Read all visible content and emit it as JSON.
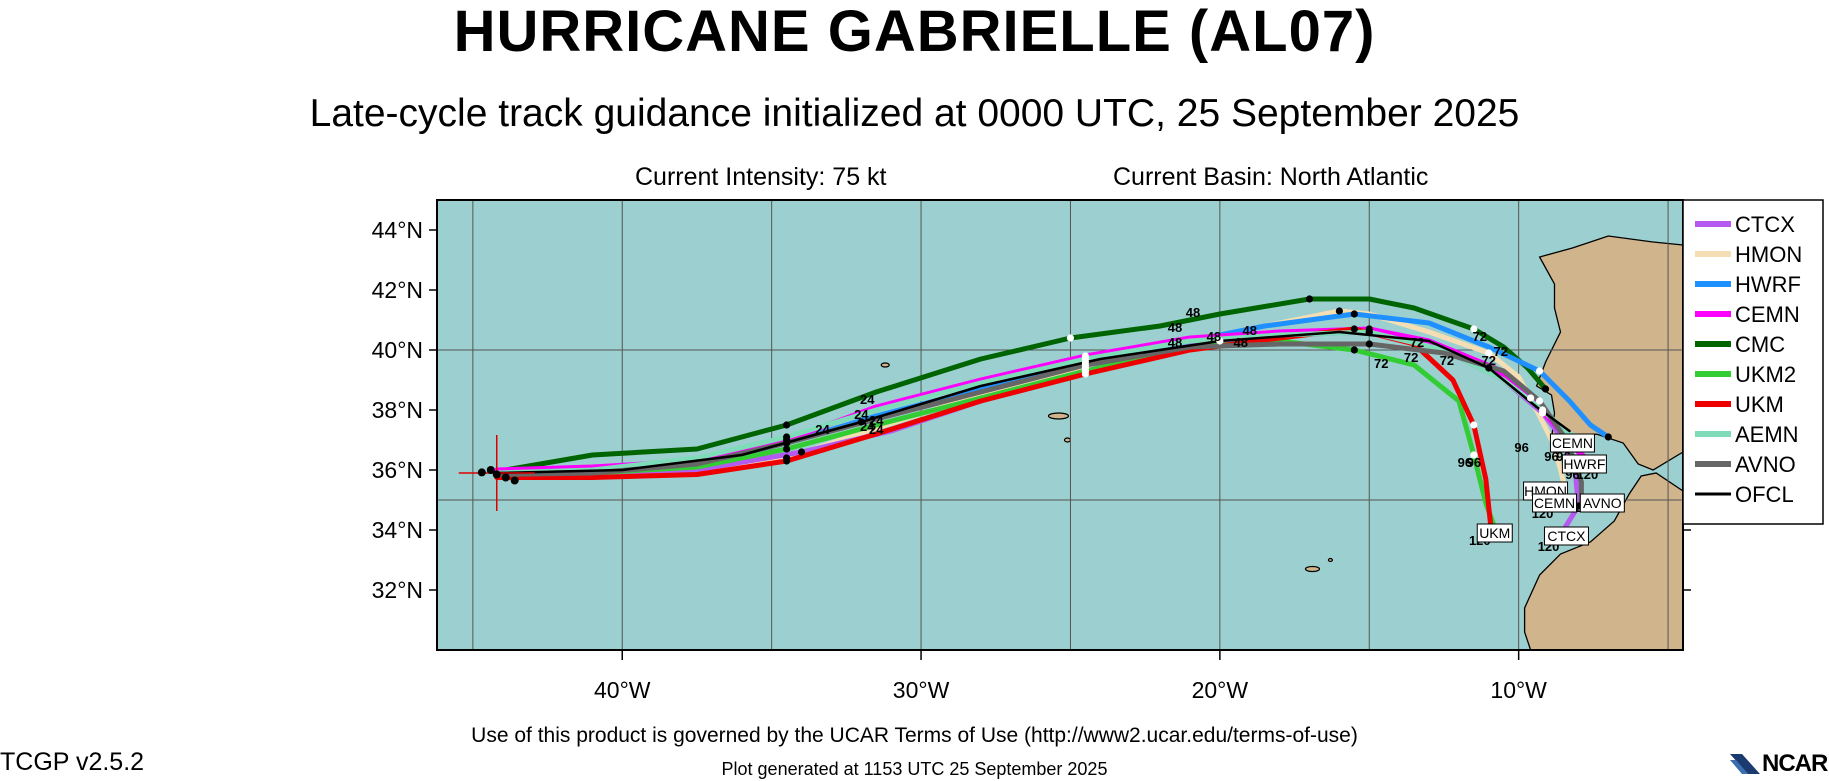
{
  "title": "HURRICANE GABRIELLE (AL07)",
  "subtitle": "Late-cycle track guidance initialized at 0000 UTC, 25 September 2025",
  "current_intensity": "Current Intensity: 75 kt",
  "current_basin": "Current Basin: North Atlantic",
  "terms": "Use of this product is governed by the UCAR Terms of Use (http://www2.ucar.edu/terms-of-use)",
  "version": "TCGP v2.5.2",
  "generated": "Plot generated at 1153 UTC   25 September 2025",
  "logo_text": "NCAR",
  "colors": {
    "ocean": "#9ccfcf",
    "land": "#d0b48c",
    "grid": "#555555"
  },
  "map": {
    "lon_range": [
      -46.2,
      -4.5
    ],
    "lat_range": [
      30.0,
      45.0
    ],
    "lat_ticks": [
      {
        "value": 44,
        "label": "44°N"
      },
      {
        "value": 42,
        "label": "42°N"
      },
      {
        "value": 40,
        "label": "40°N"
      },
      {
        "value": 38,
        "label": "38°N"
      },
      {
        "value": 36,
        "label": "36°N"
      },
      {
        "value": 34,
        "label": "34°N"
      },
      {
        "value": 32,
        "label": "32°N"
      }
    ],
    "lon_ticks": [
      {
        "value": -40,
        "label": "40°W"
      },
      {
        "value": -30,
        "label": "30°W"
      },
      {
        "value": -20,
        "label": "20°W"
      },
      {
        "value": -10,
        "label": "10°W"
      }
    ],
    "grid_lons": [
      -45,
      -40,
      -35,
      -30,
      -25,
      -20,
      -15,
      -10,
      -5
    ],
    "grid_lats": [
      35,
      40
    ],
    "current_position": {
      "lon": -44.2,
      "lat": 35.9
    }
  },
  "legend": [
    {
      "name": "CTCX",
      "color": "#b45af0"
    },
    {
      "name": "HMON",
      "color": "#f5deb3"
    },
    {
      "name": "HWRF",
      "color": "#1e90ff"
    },
    {
      "name": "CEMN",
      "color": "#ff00ff"
    },
    {
      "name": "CMC",
      "color": "#006400"
    },
    {
      "name": "UKM2",
      "color": "#32cd32"
    },
    {
      "name": "UKM",
      "color": "#ee0000"
    },
    {
      "name": "AEMN",
      "color": "#7fdcb8"
    },
    {
      "name": "AVNO",
      "color": "#666666"
    },
    {
      "name": "OFCL",
      "color": "#000000"
    }
  ],
  "tracks": [
    {
      "model": "CMC",
      "points": [
        [
          -44.2,
          35.95
        ],
        [
          -41,
          36.5
        ],
        [
          -37.5,
          36.7
        ],
        [
          -34.5,
          37.5
        ],
        [
          -31.5,
          38.6
        ],
        [
          -28,
          39.7
        ],
        [
          -25,
          40.4
        ],
        [
          -22,
          40.8
        ],
        [
          -20,
          41.2
        ],
        [
          -17,
          41.7
        ],
        [
          -15,
          41.7
        ],
        [
          -13.5,
          41.4
        ],
        [
          -11.5,
          40.7
        ],
        [
          -10.5,
          40.1
        ],
        [
          -9.7,
          39.4
        ],
        [
          -9.1,
          38.7
        ]
      ]
    },
    {
      "model": "HMON",
      "points": [
        [
          -44.2,
          35.85
        ],
        [
          -41,
          35.8
        ],
        [
          -37.5,
          35.9
        ],
        [
          -34.5,
          36.4
        ],
        [
          -31.5,
          37.4
        ],
        [
          -28,
          38.5
        ],
        [
          -24.5,
          39.4
        ],
        [
          -21,
          40.0
        ],
        [
          -19,
          40.7
        ],
        [
          -16,
          41.3
        ],
        [
          -15,
          41.2
        ],
        [
          -13,
          40.6
        ],
        [
          -11,
          39.9
        ],
        [
          -10,
          39.1
        ],
        [
          -9.4,
          38.0
        ],
        [
          -8.8,
          36.8
        ],
        [
          -8.5,
          35.6
        ],
        [
          -8.4,
          34.7
        ]
      ]
    },
    {
      "model": "CTCX",
      "points": [
        [
          -44.2,
          35.9
        ],
        [
          -41,
          35.9
        ],
        [
          -37.5,
          36.0
        ],
        [
          -34,
          36.6
        ],
        [
          -31,
          37.3
        ],
        [
          -28,
          38.3
        ],
        [
          -24.5,
          39.3
        ],
        [
          -21,
          40.2
        ],
        [
          -18,
          40.5
        ],
        [
          -15,
          40.6
        ],
        [
          -12.5,
          40.0
        ],
        [
          -10.5,
          39.0
        ],
        [
          -9.2,
          37.9
        ],
        [
          -8.5,
          37.0
        ],
        [
          -8.1,
          35.9
        ],
        [
          -8.0,
          34.8
        ],
        [
          -8.5,
          34.0
        ]
      ]
    },
    {
      "model": "HWRF",
      "points": [
        [
          -44.2,
          35.8
        ],
        [
          -41,
          35.9
        ],
        [
          -37.5,
          36.2
        ],
        [
          -34.5,
          36.9
        ],
        [
          -31.5,
          37.8
        ],
        [
          -28,
          38.7
        ],
        [
          -24.5,
          39.6
        ],
        [
          -21,
          40.3
        ],
        [
          -18.5,
          40.8
        ],
        [
          -15.5,
          41.2
        ],
        [
          -13,
          40.9
        ],
        [
          -11,
          40.1
        ],
        [
          -9.3,
          39.3
        ],
        [
          -8.3,
          38.3
        ],
        [
          -7.6,
          37.5
        ],
        [
          -7,
          37.1
        ]
      ]
    },
    {
      "model": "CEMN",
      "points": [
        [
          -44.2,
          36.0
        ],
        [
          -41,
          36.1
        ],
        [
          -37.5,
          36.3
        ],
        [
          -34.5,
          37.0
        ],
        [
          -31.5,
          38.1
        ],
        [
          -28,
          39.0
        ],
        [
          -24.5,
          39.8
        ],
        [
          -21,
          40.4
        ],
        [
          -18,
          40.6
        ],
        [
          -15,
          40.7
        ],
        [
          -13,
          40.3
        ],
        [
          -10.8,
          39.4
        ],
        [
          -9.6,
          38.4
        ],
        [
          -8.6,
          37.3
        ],
        [
          -8.0,
          36.6
        ],
        [
          -7.6,
          36.3
        ]
      ]
    },
    {
      "model": "UKM2",
      "points": [
        [
          -44.2,
          35.85
        ],
        [
          -41,
          35.9
        ],
        [
          -37.5,
          36.1
        ],
        [
          -34.5,
          36.7
        ],
        [
          -31.5,
          37.5
        ],
        [
          -28,
          38.4
        ],
        [
          -24.5,
          39.3
        ],
        [
          -21,
          40.1
        ],
        [
          -18,
          40.3
        ],
        [
          -15.5,
          40.0
        ],
        [
          -13.5,
          39.5
        ],
        [
          -12,
          38.3
        ],
        [
          -11.5,
          36.5
        ],
        [
          -11.1,
          34.9
        ],
        [
          -10.7,
          33.8
        ]
      ]
    },
    {
      "model": "UKM",
      "points": [
        [
          -44.2,
          35.75
        ],
        [
          -41,
          35.75
        ],
        [
          -37.5,
          35.85
        ],
        [
          -34.5,
          36.3
        ],
        [
          -31.5,
          37.2
        ],
        [
          -28,
          38.3
        ],
        [
          -24.5,
          39.2
        ],
        [
          -21,
          40.0
        ],
        [
          -18,
          40.4
        ],
        [
          -15.5,
          40.7
        ],
        [
          -13.5,
          40.2
        ],
        [
          -12.2,
          39.0
        ],
        [
          -11.5,
          37.5
        ],
        [
          -11.1,
          35.7
        ],
        [
          -10.9,
          33.8
        ]
      ]
    },
    {
      "model": "AEMN",
      "points": [
        [
          -44.2,
          35.9
        ],
        [
          -41,
          36.0
        ],
        [
          -37.5,
          36.4
        ],
        [
          -34.5,
          37.1
        ],
        [
          -31.5,
          38.0
        ],
        [
          -28,
          38.9
        ],
        [
          -24.5,
          39.7
        ],
        [
          -21,
          40.3
        ],
        [
          -18,
          40.5
        ],
        [
          -15,
          40.6
        ],
        [
          -12.5,
          40.0
        ],
        [
          -10.5,
          39.0
        ],
        [
          -9.2,
          38.0
        ],
        [
          -8.3,
          37.2
        ],
        [
          -7.6,
          37.0
        ]
      ]
    },
    {
      "model": "AVNO",
      "points": [
        [
          -44.2,
          35.85
        ],
        [
          -41,
          35.9
        ],
        [
          -37.5,
          36.2
        ],
        [
          -34.5,
          36.9
        ],
        [
          -31.5,
          37.7
        ],
        [
          -28,
          38.6
        ],
        [
          -24.5,
          39.5
        ],
        [
          -21,
          40.1
        ],
        [
          -18,
          40.2
        ],
        [
          -15,
          40.2
        ],
        [
          -12.5,
          39.9
        ],
        [
          -10.5,
          39.3
        ],
        [
          -9.3,
          38.3
        ],
        [
          -8.4,
          37.0
        ],
        [
          -7.9,
          35.6
        ],
        [
          -7.9,
          34.8
        ]
      ]
    },
    {
      "model": "OFCL",
      "points": [
        [
          -44.2,
          35.9
        ],
        [
          -40,
          36.0
        ],
        [
          -36,
          36.5
        ],
        [
          -32,
          37.6
        ],
        [
          -28,
          38.8
        ],
        [
          -24,
          39.7
        ],
        [
          -20,
          40.3
        ],
        [
          -16,
          40.6
        ],
        [
          -13,
          40.3
        ],
        [
          -11,
          39.4
        ],
        [
          -9.4,
          38.1
        ],
        [
          -8.3,
          37.3
        ]
      ]
    }
  ],
  "forecast_labels": [
    {
      "text": "24",
      "lon": -31.8,
      "lat": 38.2
    },
    {
      "text": "24",
      "lon": -32.0,
      "lat": 37.7
    },
    {
      "text": "24",
      "lon": -31.5,
      "lat": 37.5
    },
    {
      "text": "24",
      "lon": -33.3,
      "lat": 37.2
    },
    {
      "text": "24",
      "lon": -31.5,
      "lat": 37.2
    },
    {
      "text": "24",
      "lon": -31.8,
      "lat": 37.3
    },
    {
      "text": "48",
      "lon": -21.5,
      "lat": 40.6
    },
    {
      "text": "48",
      "lon": -20.2,
      "lat": 40.3
    },
    {
      "text": "48",
      "lon": -20.9,
      "lat": 41.1
    },
    {
      "text": "48",
      "lon": -21.5,
      "lat": 40.1
    },
    {
      "text": "48",
      "lon": -19.0,
      "lat": 40.5
    },
    {
      "text": "48",
      "lon": -19.3,
      "lat": 40.1
    },
    {
      "text": "72",
      "lon": -13.6,
      "lat": 39.6
    },
    {
      "text": "72",
      "lon": -13.4,
      "lat": 40.1
    },
    {
      "text": "72",
      "lon": -11.3,
      "lat": 40.3
    },
    {
      "text": "72",
      "lon": -14.6,
      "lat": 39.4
    },
    {
      "text": "72",
      "lon": -12.4,
      "lat": 39.5
    },
    {
      "text": "72",
      "lon": -10.6,
      "lat": 39.8
    },
    {
      "text": "72",
      "lon": -11.0,
      "lat": 39.5
    },
    {
      "text": "96",
      "lon": -9.9,
      "lat": 36.6
    },
    {
      "text": "96",
      "lon": -8.9,
      "lat": 36.3
    },
    {
      "text": "96",
      "lon": -8.5,
      "lat": 36.3
    },
    {
      "text": "96",
      "lon": -7.8,
      "lat": 36.6
    },
    {
      "text": "96",
      "lon": -8.2,
      "lat": 35.7
    },
    {
      "text": "96",
      "lon": -11.5,
      "lat": 36.1
    },
    {
      "text": "96",
      "lon": -11.8,
      "lat": 36.1
    },
    {
      "text": "120",
      "lon": -7.7,
      "lat": 35.7
    },
    {
      "text": "120",
      "lon": -9.4,
      "lat": 35.1
    },
    {
      "text": "120",
      "lon": -7.4,
      "lat": 34.6
    },
    {
      "text": "120",
      "lon": -8.0,
      "lat": 34.6
    },
    {
      "text": "120",
      "lon": -9.2,
      "lat": 34.4
    },
    {
      "text": "120",
      "lon": -11.3,
      "lat": 33.5
    },
    {
      "text": "120",
      "lon": -9.0,
      "lat": 33.3
    }
  ],
  "end_labels": [
    {
      "text": "CEMN",
      "lon": -8.2,
      "lat": 36.9
    },
    {
      "text": "HWRF",
      "lon": -7.8,
      "lat": 36.2
    },
    {
      "text": "HMON",
      "lon": -9.1,
      "lat": 35.3
    },
    {
      "text": "CEMN",
      "lon": -8.8,
      "lat": 34.9
    },
    {
      "text": "AVNO",
      "lon": -7.2,
      "lat": 34.9
    },
    {
      "text": "UKM",
      "lon": -10.8,
      "lat": 33.9
    },
    {
      "text": "CTCX",
      "lon": -8.4,
      "lat": 33.8
    }
  ]
}
